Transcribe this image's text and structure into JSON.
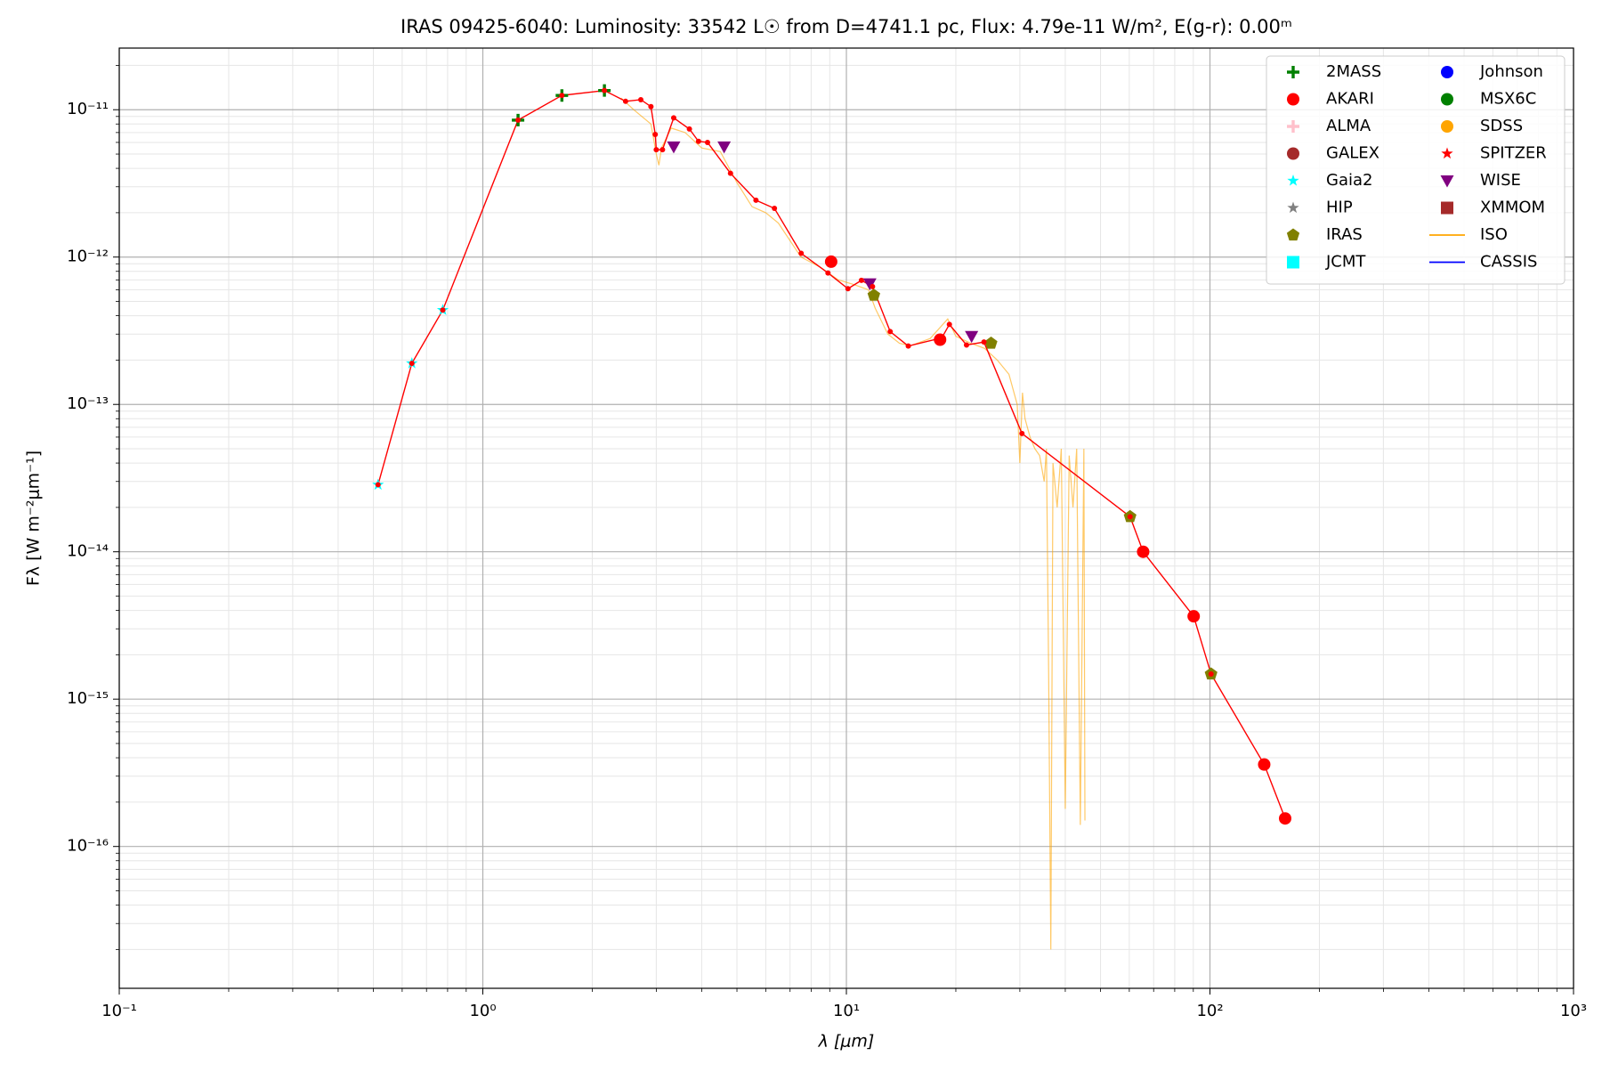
{
  "chart_data": {
    "type": "sed",
    "title": "IRAS 09425-6040:  Luminosity: 33542 L☉ from D=4741.1 pc, Flux: 4.79e-11 W/m², E(g-r): 0.00ᵐ",
    "xlabel": "λ [μm]",
    "ylabel": "Fλ [W m⁻²μm⁻¹]",
    "xscale": "log",
    "yscale": "log",
    "grid": true,
    "legend": "upper right",
    "xlim": [
      0.1,
      1000
    ],
    "ylim": [
      1.09e-17,
      2.62e-11
    ],
    "xticks": [
      {
        "value": 0.1,
        "label": "10⁻¹"
      },
      {
        "value": 1,
        "label": "10⁰"
      },
      {
        "value": 10,
        "label": "10¹"
      },
      {
        "value": 100,
        "label": "10²"
      },
      {
        "value": 1000,
        "label": "10³"
      }
    ],
    "yticks": [
      {
        "value": 1e-16,
        "label": "10⁻¹⁶"
      },
      {
        "value": 1e-15,
        "label": "10⁻¹⁵"
      },
      {
        "value": 1e-14,
        "label": "10⁻¹⁴"
      },
      {
        "value": 1e-13,
        "label": "10⁻¹³"
      },
      {
        "value": 1e-12,
        "label": "10⁻¹²"
      },
      {
        "value": 1e-11,
        "label": "10⁻¹¹"
      }
    ],
    "xminorticks": [
      0.2,
      0.3,
      0.4,
      0.5,
      0.6,
      0.7,
      0.8,
      0.9,
      2,
      3,
      4,
      5,
      6,
      7,
      8,
      9,
      20,
      30,
      40,
      50,
      60,
      70,
      80,
      90,
      200,
      300,
      400,
      500,
      600,
      700,
      800,
      900
    ],
    "yminorticks": [
      2e-17,
      3e-17,
      4e-17,
      5e-17,
      6e-17,
      7e-17,
      8e-17,
      9e-17,
      2e-16,
      3e-16,
      4e-16,
      5e-16,
      6e-16,
      7e-16,
      8e-16,
      9e-16,
      2e-15,
      3e-15,
      4e-15,
      5e-15,
      6e-15,
      7e-15,
      8e-15,
      9e-15,
      2e-14,
      3e-14,
      4e-14,
      5e-14,
      6e-14,
      7e-14,
      8e-14,
      9e-14,
      2e-13,
      3e-13,
      4e-13,
      5e-13,
      6e-13,
      7e-13,
      8e-13,
      9e-13,
      2e-12,
      3e-12,
      4e-12,
      5e-12,
      6e-12,
      7e-12,
      8e-12,
      9e-12,
      2e-11
    ],
    "model": {
      "color": "red",
      "x": [
        0.515,
        0.638,
        0.776,
        1.25,
        1.65,
        2.16,
        2.47,
        2.72,
        2.9,
        2.98,
        3.0,
        3.12,
        3.35,
        3.7,
        3.92,
        4.15,
        4.8,
        5.64,
        6.34,
        7.51,
        8.9,
        10.1,
        11.0,
        11.8,
        13.2,
        14.8,
        18.3,
        19.2,
        21.4,
        23.9,
        30.4,
        60.3,
        65.5,
        90.2,
        100.7,
        141,
        161
      ],
      "y": [
        2.85e-14,
        1.9e-13,
        4.37e-13,
        8.5e-12,
        1.25e-11,
        1.35e-11,
        1.14e-11,
        1.17e-11,
        1.05e-11,
        6.8e-12,
        5.35e-12,
        5.35e-12,
        8.8e-12,
        7.4e-12,
        6.1e-12,
        6e-12,
        3.7e-12,
        2.43e-12,
        2.14e-12,
        1.06e-12,
        7.8e-13,
        6.1e-13,
        6.95e-13,
        6.3e-13,
        3.12e-13,
        2.49e-13,
        2.83e-13,
        3.49e-13,
        2.53e-13,
        2.65e-13,
        6.35e-14,
        1.73e-14,
        1e-14,
        3.65e-15,
        1.48e-15,
        3.6e-16,
        1.55e-16
      ]
    },
    "series": [
      {
        "name": "2MASS",
        "color": "green",
        "marker": "plus",
        "x": [
          1.25,
          1.65,
          2.16
        ],
        "values": [
          8.5e-12,
          1.25e-11,
          1.35e-11
        ]
      },
      {
        "name": "AKARI",
        "color": "red",
        "marker": "circle",
        "x": [
          9.08,
          18.1,
          65.5,
          90.2,
          141,
          161
        ],
        "values": [
          9.3e-13,
          2.75e-13,
          1e-14,
          3.65e-15,
          3.6e-16,
          1.55e-16
        ]
      },
      {
        "name": "ALMA",
        "color": "pink",
        "marker": "plus",
        "x": [],
        "values": []
      },
      {
        "name": "GALEX",
        "color": "#a52a2a",
        "marker": "circle",
        "x": [],
        "values": []
      },
      {
        "name": "Gaia2",
        "color": "cyan",
        "marker": "star",
        "x": [
          0.515,
          0.638,
          0.776
        ],
        "values": [
          2.85e-14,
          1.9e-13,
          4.37e-13
        ]
      },
      {
        "name": "HIP",
        "color": "grey",
        "marker": "star",
        "x": [],
        "values": []
      },
      {
        "name": "IRAS",
        "color": "olive",
        "marker": "pentagon",
        "x": [
          11.9,
          25.0,
          60.3,
          100.7
        ],
        "values": [
          5.5e-13,
          2.6e-13,
          1.73e-14,
          1.48e-15
        ]
      },
      {
        "name": "JCMT",
        "color": "cyan",
        "marker": "square",
        "x": [],
        "values": []
      },
      {
        "name": "Johnson",
        "color": "blue",
        "marker": "circle",
        "x": [],
        "values": []
      },
      {
        "name": "MSX6C",
        "color": "green",
        "marker": "circle",
        "x": [],
        "values": []
      },
      {
        "name": "SDSS",
        "color": "orange",
        "marker": "circle",
        "x": [],
        "values": []
      },
      {
        "name": "SPITZER",
        "color": "red",
        "marker": "star",
        "x": [],
        "values": []
      },
      {
        "name": "WISE",
        "color": "purple",
        "marker": "triangle_down",
        "x": [
          3.35,
          4.61,
          11.6,
          22.1
        ],
        "values": [
          5.6e-12,
          5.6e-12,
          6.6e-13,
          2.9e-13
        ]
      },
      {
        "name": "XMMOM",
        "color": "#a52a2a",
        "marker": "square",
        "x": [],
        "values": []
      },
      {
        "name": "ISO",
        "color": "orange",
        "marker": "line",
        "x": [
          2.4,
          2.6,
          2.9,
          3.0,
          3.05,
          3.1,
          3.3,
          3.6,
          4.0,
          4.5,
          5.0,
          5.5,
          6.0,
          6.5,
          7.5,
          8.5,
          9.5,
          10.5,
          11.5,
          12,
          13,
          14,
          15,
          17,
          19,
          20,
          22,
          24,
          26,
          28,
          29.5,
          30,
          30.5,
          31,
          32,
          33,
          34,
          35,
          35.5,
          36,
          36.5,
          37,
          38,
          39,
          40,
          41,
          42,
          43,
          44,
          45,
          45.3
        ],
        "values": [
          1.2e-11,
          1e-11,
          8e-12,
          5e-12,
          4.2e-12,
          5.5e-12,
          7.5e-12,
          7e-12,
          5.5e-12,
          5.2e-12,
          3.2e-12,
          2.2e-12,
          2e-12,
          1.7e-12,
          1e-12,
          8.5e-13,
          7e-13,
          6.5e-13,
          6e-13,
          4.5e-13,
          3e-13,
          2.6e-13,
          2.5e-13,
          2.8e-13,
          3.8e-13,
          2.9e-13,
          2.6e-13,
          2.4e-13,
          2e-13,
          1.6e-13,
          1e-13,
          4e-14,
          1.2e-13,
          8e-14,
          6e-14,
          5e-14,
          4.5e-14,
          3e-14,
          5e-14,
          1.5e-15,
          2e-17,
          4e-14,
          2e-14,
          5e-14,
          1.8e-16,
          4.5e-14,
          2e-14,
          5e-14,
          1.4e-16,
          5e-14,
          1.5e-16
        ]
      },
      {
        "name": "CASSIS",
        "color": "blue",
        "marker": "line",
        "x": [],
        "values": []
      }
    ]
  }
}
